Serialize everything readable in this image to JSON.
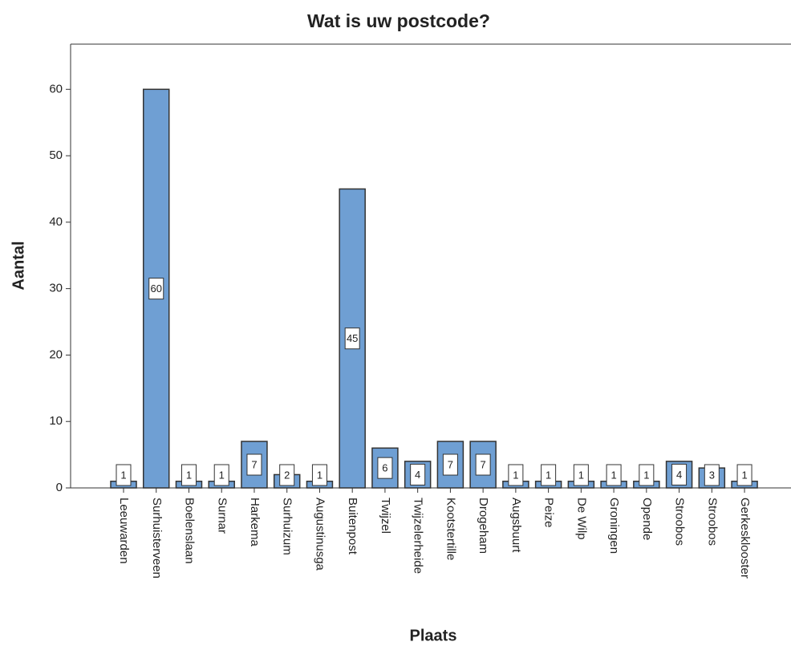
{
  "chart_data": {
    "type": "bar",
    "title": "Wat is uw postcode?",
    "x_label": "Plaats",
    "y_label": "Aantal",
    "categories": [
      "Leeuwarden",
      "Surhuisterveen",
      "Boelenslaan",
      "Surnar",
      "Harkema",
      "Surhuizum",
      "Augustinusga",
      "Buitenpost",
      "Twijzel",
      "Twijzelerheide",
      "Kootstertille",
      "Drogeham",
      "Augsbuurt",
      "Peize",
      "De Wilp",
      "Groningen",
      "Opende",
      "Stroobos",
      "Stroobos",
      "Gerkesklooster"
    ],
    "values": [
      1,
      60,
      1,
      1,
      7,
      2,
      1,
      45,
      6,
      4,
      7,
      7,
      1,
      1,
      1,
      1,
      1,
      4,
      3,
      1
    ],
    "color": "#6f9fd3",
    "ylim": [
      0,
      66.8
    ],
    "yticks": [
      0,
      10,
      20,
      30,
      40,
      50,
      60
    ]
  }
}
